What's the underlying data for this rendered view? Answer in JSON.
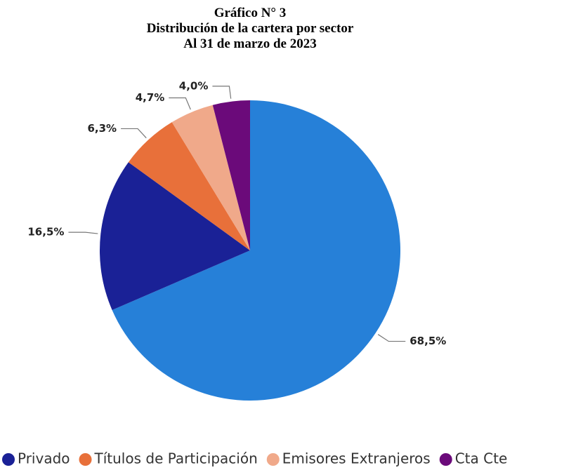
{
  "chart_data": {
    "type": "pie",
    "title": [
      "Gráfico N° 3",
      "Distribución de la cartera por sector",
      "Al 31 de marzo de 2023"
    ],
    "categories": [
      null,
      "Privado",
      "Títulos de Participación",
      "Emisores Extranjeros",
      "Cta Cte"
    ],
    "values": [
      68.5,
      16.5,
      6.3,
      4.7,
      4.0
    ],
    "value_labels": [
      "68,5%",
      "16,5%",
      "6,3%",
      "4,7%",
      "4,0%"
    ],
    "colors": [
      "#2680d8",
      "#1a2196",
      "#e8703a",
      "#f0a98a",
      "#6b0a7a"
    ]
  }
}
